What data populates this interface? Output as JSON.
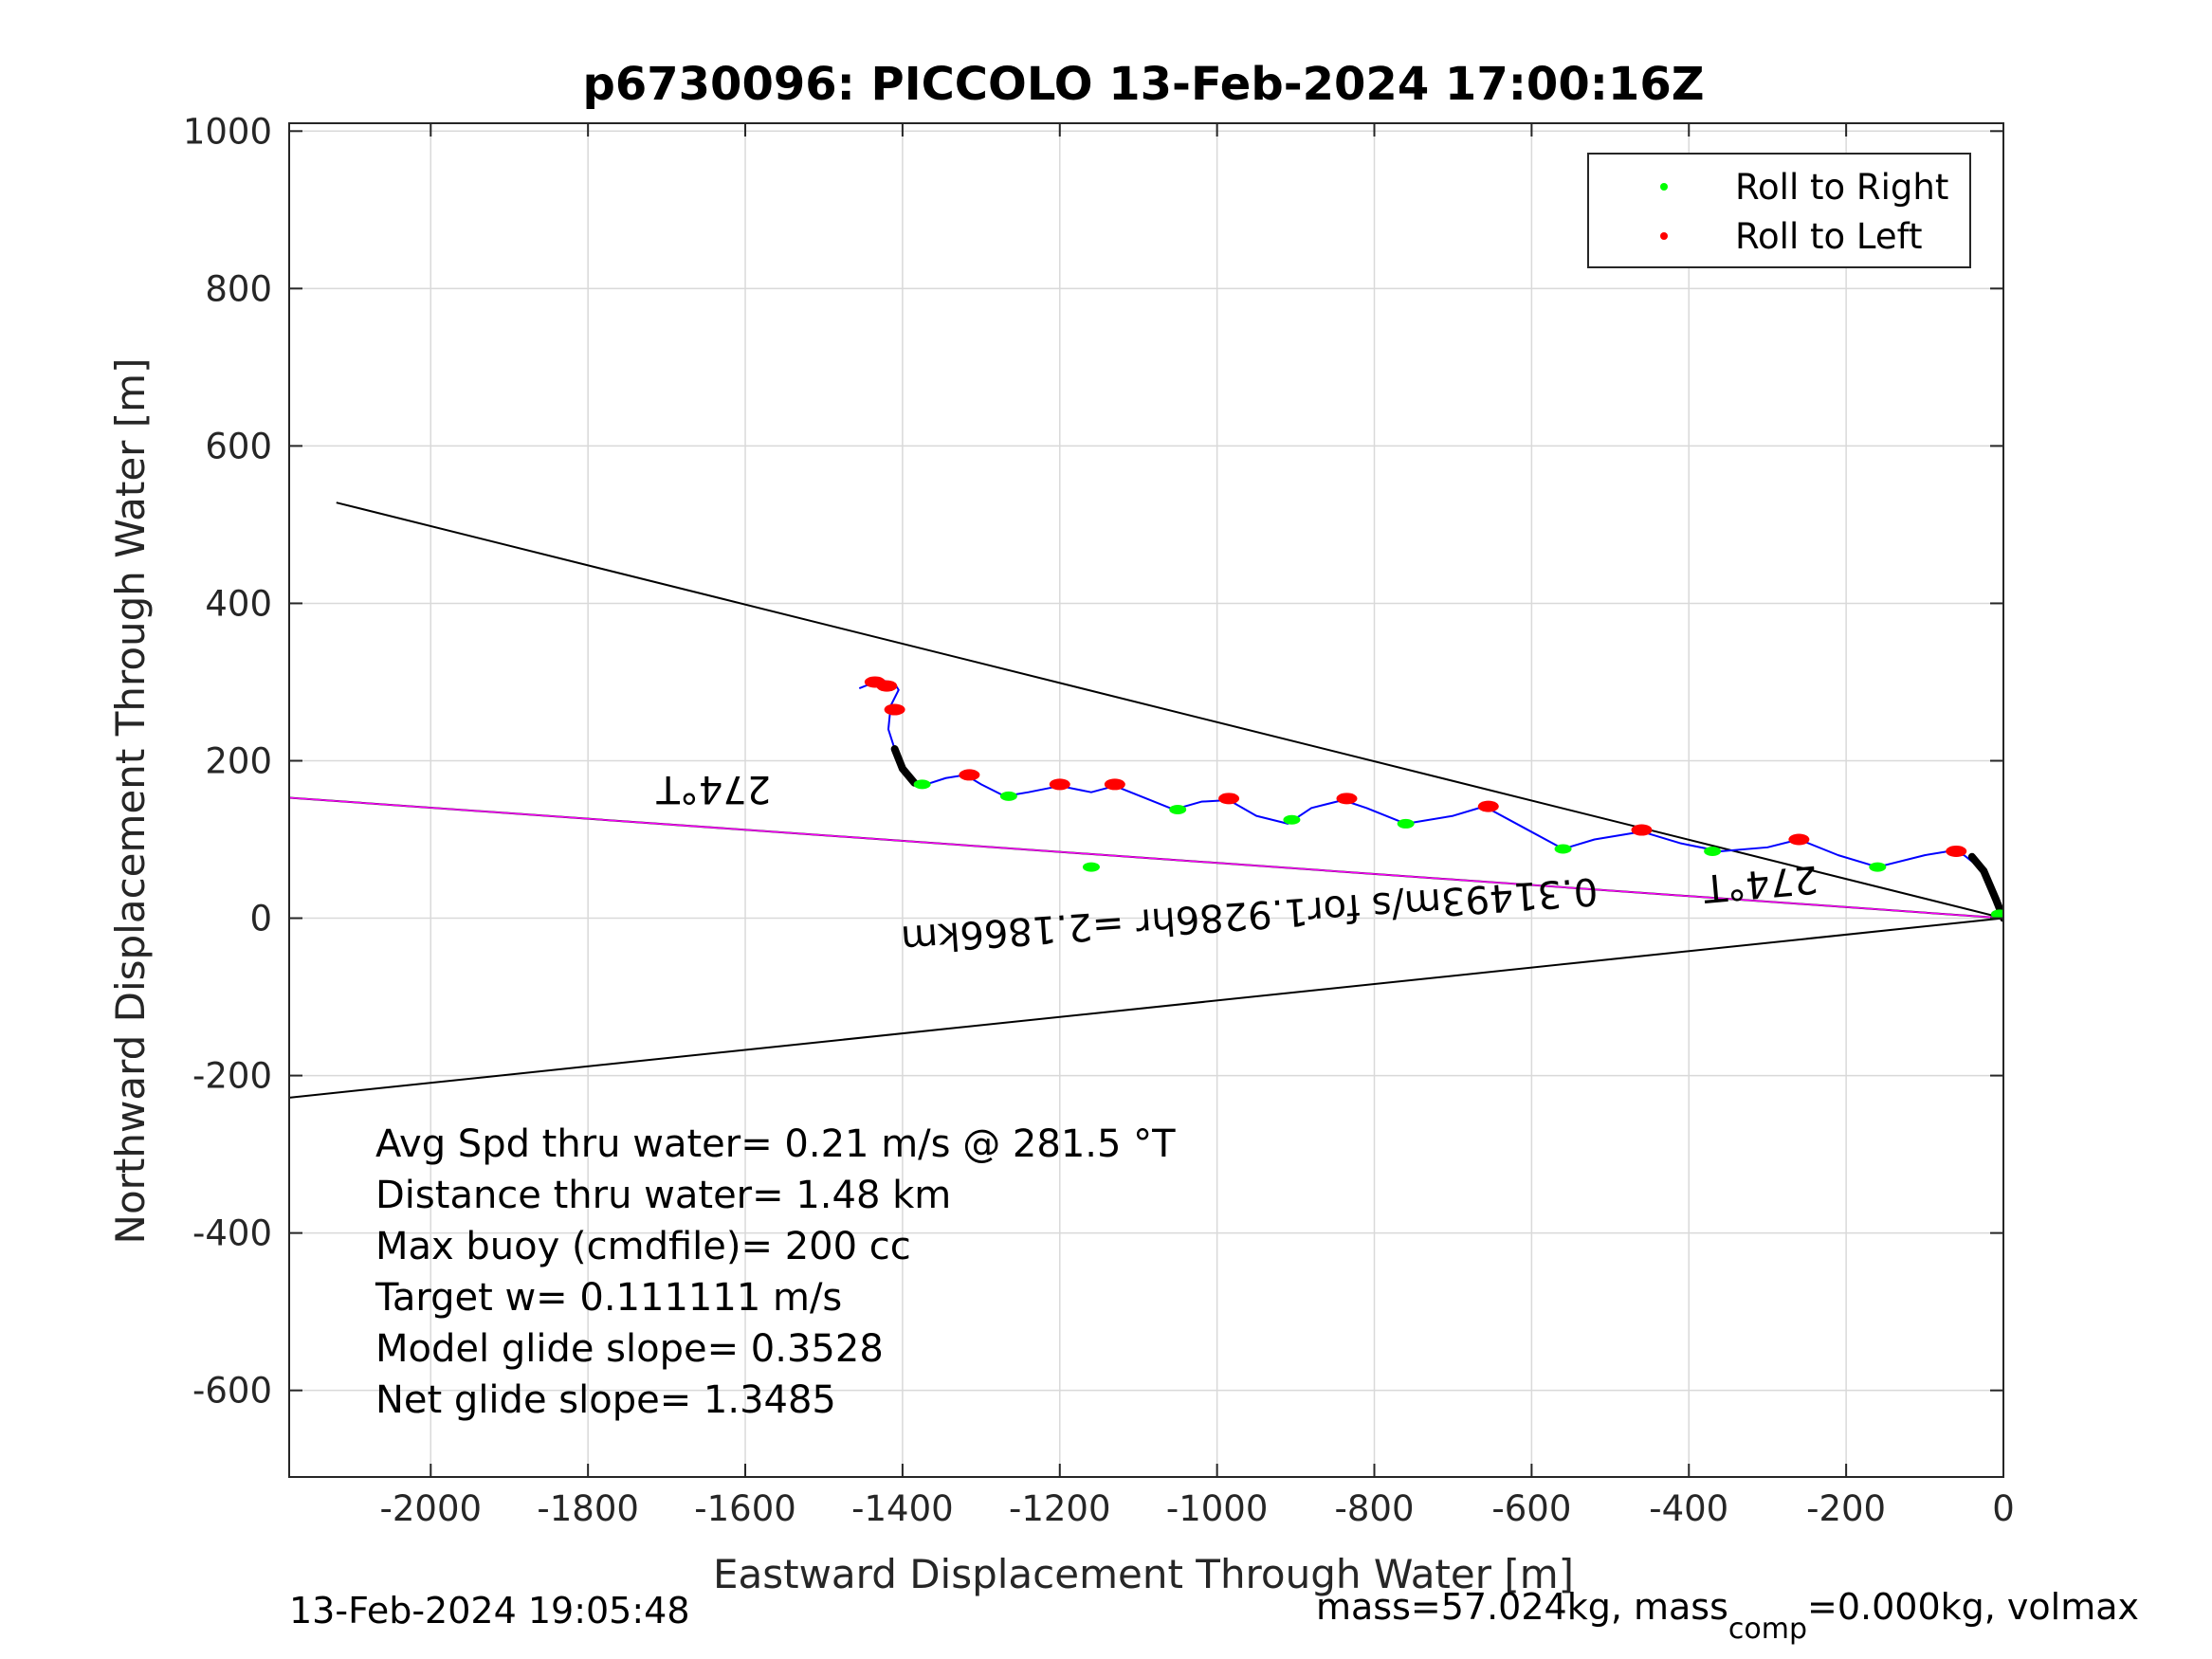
{
  "chart_data": {
    "type": "line",
    "title": "p6730096: PICCOLO 13-Feb-2024 17:00:16Z",
    "xlabel": "Eastward Displacement Through Water [m]",
    "ylabel": "Northward Displacement Through Water [m]",
    "xlim": [
      -2180,
      0
    ],
    "ylim": [
      -710,
      1010
    ],
    "xticks": [
      -2000,
      -1800,
      -1600,
      -1400,
      -1200,
      -1000,
      -800,
      -600,
      -400,
      -200,
      0
    ],
    "yticks": [
      -600,
      -400,
      -200,
      0,
      200,
      400,
      600,
      800,
      1000
    ],
    "grid": true,
    "legend": {
      "placement": "top-right",
      "entries": [
        {
          "label": "Roll to Right",
          "color": "#00ff00"
        },
        {
          "label": "Roll to Left",
          "color": "#ff0000"
        }
      ]
    },
    "track": {
      "color": "#0000ff",
      "x": [
        0,
        -10,
        -25,
        -50,
        -70,
        -100,
        -160,
        -210,
        -260,
        -300,
        -360,
        -410,
        -460,
        -520,
        -560,
        -610,
        -660,
        -700,
        -760,
        -810,
        -840,
        -880,
        -910,
        -950,
        -985,
        -1020,
        -1055,
        -1090,
        -1130,
        -1160,
        -1200,
        -1240,
        -1270,
        -1300,
        -1320,
        -1345,
        -1370,
        -1385,
        -1400,
        -1410,
        -1418,
        -1415,
        -1405,
        -1410,
        -1425,
        -1440,
        -1455
      ],
      "y": [
        0,
        25,
        60,
        80,
        85,
        80,
        65,
        80,
        100,
        90,
        85,
        95,
        110,
        100,
        88,
        115,
        142,
        130,
        120,
        140,
        150,
        140,
        120,
        130,
        150,
        148,
        138,
        152,
        168,
        160,
        168,
        160,
        155,
        170,
        182,
        178,
        170,
        172,
        190,
        215,
        240,
        270,
        290,
        298,
        302,
        298,
        292
      ]
    },
    "thick_segments": [
      {
        "color": "#000000",
        "x": [
          0,
          -10,
          -25,
          -40
        ],
        "y": [
          0,
          25,
          60,
          78
        ]
      },
      {
        "color": "#000000",
        "x": [
          -1385,
          -1400,
          -1410
        ],
        "y": [
          172,
          190,
          215
        ]
      }
    ],
    "roll_right_x": [
      -1375,
      -1265,
      -1160,
      -1050,
      -905,
      -760,
      -560,
      -370,
      -160,
      -5
    ],
    "roll_right_y": [
      170,
      155,
      65,
      138,
      125,
      120,
      88,
      85,
      65,
      5
    ],
    "roll_left_x": [
      -1435,
      -1420,
      -1410,
      -1315,
      -1200,
      -1130,
      -985,
      -835,
      -655,
      -460,
      -260,
      -60
    ],
    "roll_left_y": [
      300,
      295,
      265,
      182,
      170,
      170,
      152,
      152,
      142,
      112,
      100,
      85
    ],
    "lines": [
      {
        "color": "#000000",
        "x": [
          0,
          -2120
        ],
        "y": [
          0,
          528
        ]
      },
      {
        "color": "#000000",
        "x": [
          0,
          -2180
        ],
        "y": [
          0,
          -228
        ]
      },
      {
        "color": "#000000",
        "x": [
          0,
          -2180
        ],
        "y": [
          0,
          153
        ]
      },
      {
        "color": "#ff00ff",
        "x": [
          0,
          -2180
        ],
        "y": [
          0,
          153
        ]
      }
    ],
    "annotations": [
      {
        "text": "274°T",
        "x": -1640,
        "y": 180,
        "rotation": 180
      },
      {
        "text": "274°T",
        "x": -310,
        "y": 60,
        "rotation": 175
      },
      {
        "text": "0.31493m/s for1.9286hr =2.1866km",
        "x": -960,
        "y": 20,
        "rotation": 176
      }
    ]
  },
  "info_lines": [
    "Avg Spd thru water=  0.21 m/s @ 281.5 °T",
    "Distance thru water=  1.48 km",
    "Max buoy (cmdfile)= 200 cc",
    "Target w= 0.111111 m/s",
    "Model glide slope= 0.3528",
    "Net glide slope= 1.3485"
  ],
  "footer": {
    "timestamp": "13-Feb-2024 19:05:48",
    "mass_text": "mass=57.024kg, mass",
    "mass_sub": "comp",
    "mass_rest": "=0.000kg, volmax"
  },
  "colors": {
    "axis": "#262626",
    "grid": "#d9d9d9"
  }
}
